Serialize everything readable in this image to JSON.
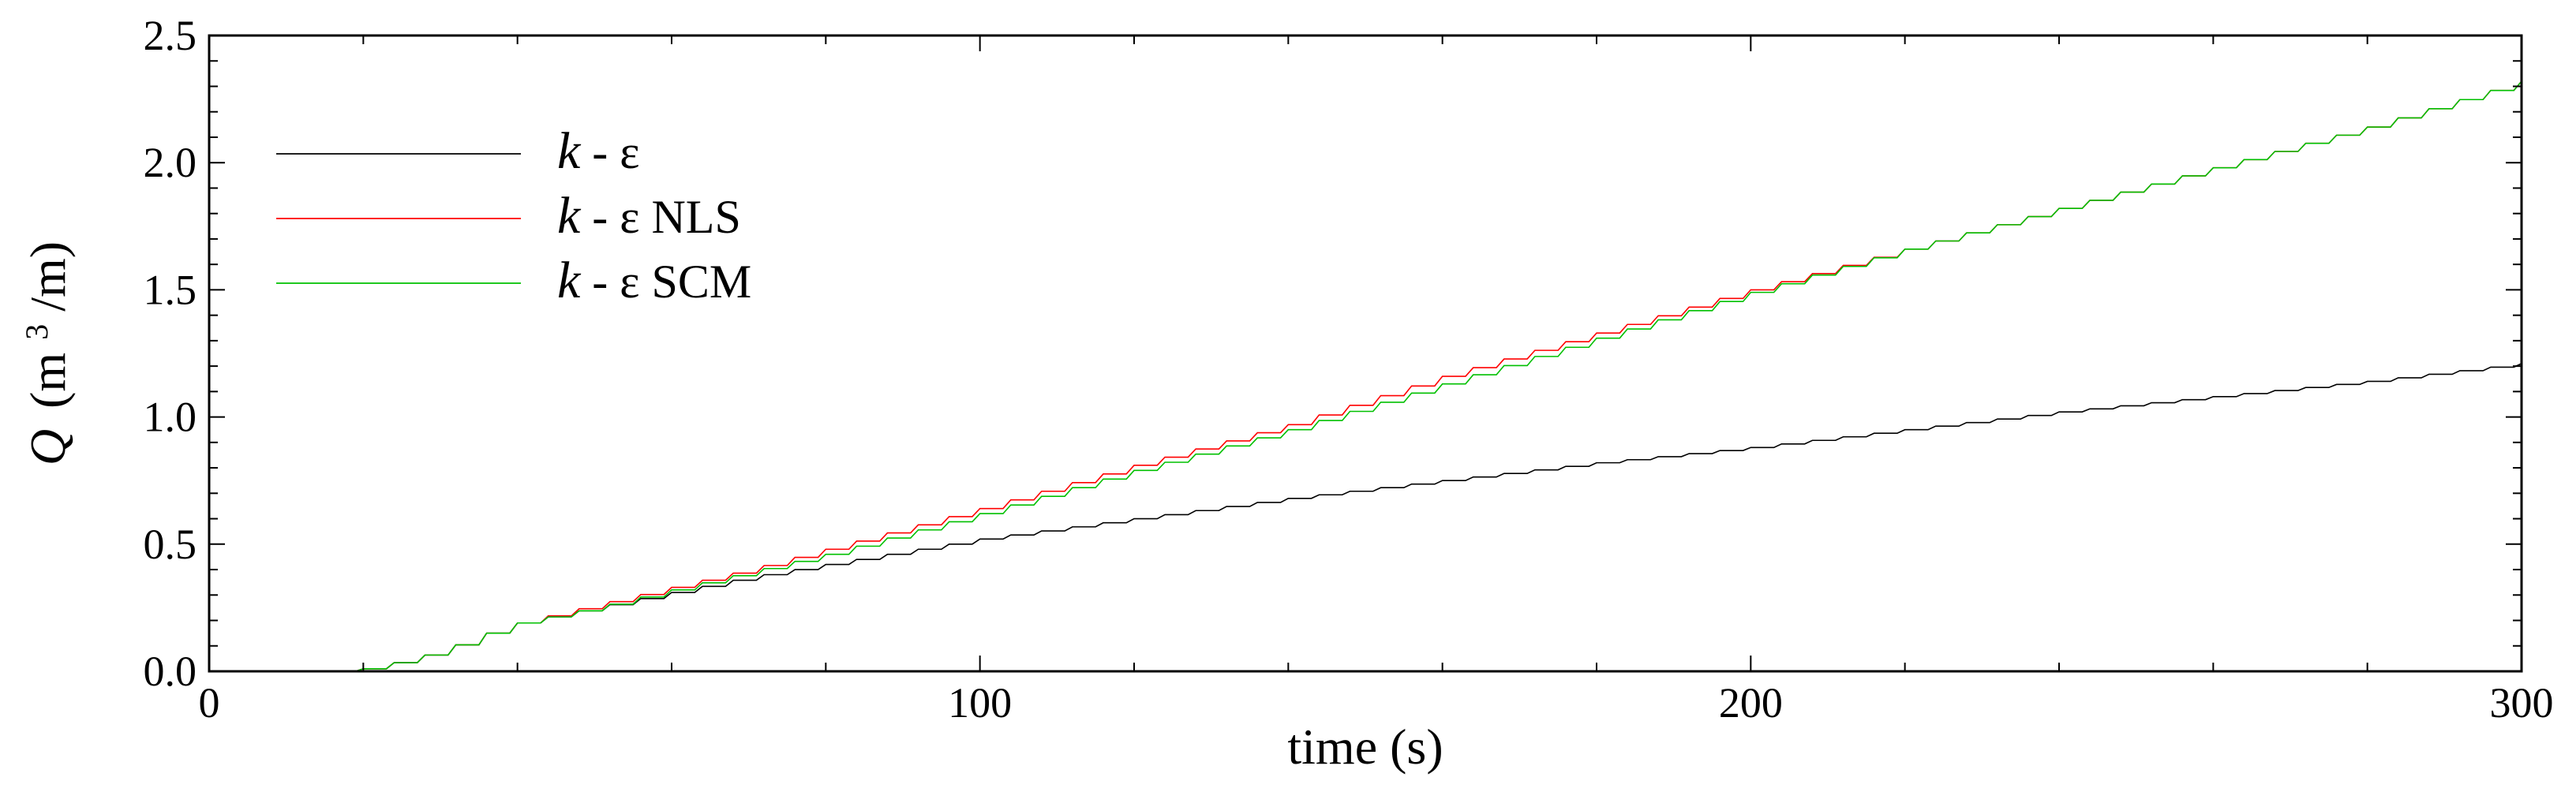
{
  "chart_data": {
    "type": "line",
    "xlabel": "time (s)",
    "ylabel": {
      "symbol": "Q",
      "unit_open": "(m",
      "unit_sup": "3",
      "unit_close": "/m)"
    },
    "xlim": [
      0,
      300
    ],
    "ylim": [
      0,
      2.5
    ],
    "x_ticks": [
      0,
      100,
      200,
      300
    ],
    "x_tick_labels": [
      "0",
      "100",
      "200",
      "300"
    ],
    "y_ticks": [
      0,
      0.5,
      1.0,
      1.5,
      2.0,
      2.5
    ],
    "y_tick_labels": [
      "0.0",
      "0.5",
      "1.0",
      "1.5",
      "2.0",
      "2.5"
    ],
    "grid": false,
    "legend_position": "top-left",
    "series": [
      {
        "name_main": "k",
        "name_rest": " - ε",
        "color": "#000000",
        "x": [
          0,
          17,
          20,
          25,
          30,
          35,
          40,
          50,
          60,
          70,
          80,
          90,
          100,
          120,
          140,
          160,
          180,
          200,
          220,
          240,
          260,
          280,
          300
        ],
        "y": [
          0,
          0,
          0.01,
          0.04,
          0.08,
          0.14,
          0.19,
          0.25,
          0.31,
          0.37,
          0.42,
          0.47,
          0.52,
          0.6,
          0.68,
          0.75,
          0.82,
          0.88,
          0.95,
          1.02,
          1.08,
          1.14,
          1.21
        ]
      },
      {
        "name_main": "k",
        "name_rest": " - ε NLS",
        "color": "#ff0000",
        "x": [
          0,
          17,
          20,
          25,
          30,
          35,
          40,
          50,
          60,
          70,
          80,
          90,
          100,
          120,
          140,
          160,
          180,
          200,
          220,
          240,
          260,
          280,
          300
        ],
        "y": [
          0,
          0,
          0.01,
          0.04,
          0.08,
          0.14,
          0.19,
          0.26,
          0.33,
          0.4,
          0.48,
          0.56,
          0.64,
          0.81,
          0.97,
          1.16,
          1.33,
          1.5,
          1.66,
          1.82,
          1.98,
          2.14,
          2.32
        ]
      },
      {
        "name_main": "k",
        "name_rest": " - ε SCM",
        "color": "#00c000",
        "x": [
          0,
          17,
          20,
          25,
          30,
          35,
          40,
          50,
          60,
          70,
          80,
          90,
          100,
          120,
          140,
          160,
          180,
          200,
          220,
          240,
          260,
          280,
          300
        ],
        "y": [
          0,
          0,
          0.01,
          0.04,
          0.08,
          0.14,
          0.19,
          0.25,
          0.32,
          0.39,
          0.46,
          0.54,
          0.62,
          0.79,
          0.95,
          1.13,
          1.31,
          1.49,
          1.66,
          1.82,
          1.98,
          2.14,
          2.32
        ]
      }
    ]
  }
}
